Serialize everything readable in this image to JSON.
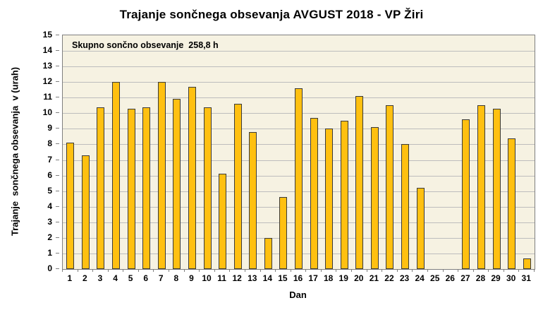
{
  "chart_data": {
    "type": "bar",
    "title": "Trajanje  sončnega obsevanja  AVGUST 2018 - VP Žiri",
    "annotation": "Skupno sončno obsevanje  258,8 h",
    "xlabel": "Dan",
    "ylabel": "Trajanje  sončnega obsevanja  v (urah)",
    "categories": [
      1,
      2,
      3,
      4,
      5,
      6,
      7,
      8,
      9,
      10,
      11,
      12,
      13,
      14,
      15,
      16,
      17,
      18,
      19,
      20,
      21,
      22,
      23,
      24,
      25,
      26,
      27,
      28,
      29,
      30,
      31
    ],
    "values": [
      8.1,
      7.3,
      10.4,
      12.0,
      10.3,
      10.4,
      12.0,
      10.9,
      11.7,
      10.4,
      6.1,
      10.6,
      8.8,
      2.0,
      4.6,
      11.6,
      9.7,
      9.0,
      9.5,
      11.1,
      9.1,
      10.5,
      8.0,
      5.2,
      0,
      0,
      9.6,
      10.5,
      10.3,
      8.4,
      0.7
    ],
    "total_hours": "258,8",
    "ylim": [
      0,
      15
    ],
    "ytick_step": 1,
    "grid": true,
    "legend": "none",
    "colors": {
      "bar_fill": "#FFC010",
      "bar_border": "#3a3a3a",
      "plot_bg": "#f6f2e2",
      "plot_border": "#7f7f7f",
      "gridline": "#bdbdbd",
      "text": "#000000"
    }
  }
}
